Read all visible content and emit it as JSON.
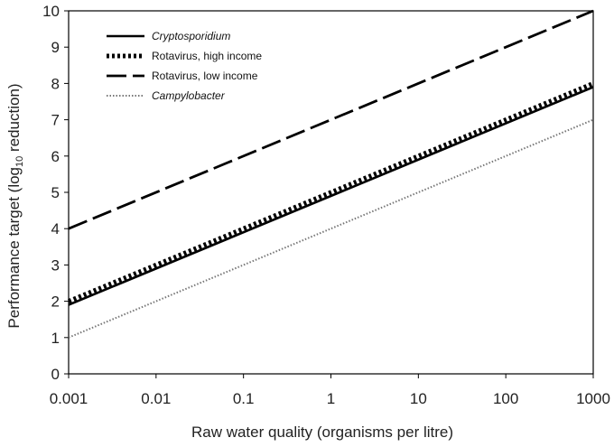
{
  "chart_data": {
    "type": "line",
    "title": "",
    "xlabel": "Raw water quality (organisms per litre)",
    "ylabel_parts": {
      "before": "Performance target (log",
      "sub": "10",
      "after": " reduction)"
    },
    "x_scale": "log",
    "xlim": [
      0.001,
      1000
    ],
    "ylim": [
      0,
      10
    ],
    "x_ticks": [
      "0.001",
      "0.01",
      "0.1",
      "1",
      "10",
      "100",
      "1000"
    ],
    "y_ticks": [
      "0",
      "1",
      "2",
      "3",
      "4",
      "5",
      "6",
      "7",
      "8",
      "9",
      "10"
    ],
    "grid": false,
    "legend_position": "top-left",
    "series": [
      {
        "name": "Cryptosporidium",
        "italic": true,
        "style": "solid",
        "color": "#000000",
        "points": [
          [
            0.001,
            1.9
          ],
          [
            1000,
            7.9
          ]
        ]
      },
      {
        "name": "Rotavirus, high income",
        "italic": false,
        "style": "dotted-thick",
        "color": "#000000",
        "points": [
          [
            0.001,
            2.0
          ],
          [
            1000,
            8.0
          ]
        ]
      },
      {
        "name": "Rotavirus, low income",
        "italic": false,
        "style": "long-dash",
        "color": "#000000",
        "points": [
          [
            0.001,
            4.0
          ],
          [
            1000,
            10.0
          ]
        ]
      },
      {
        "name": "Campylobacter",
        "italic": true,
        "style": "fine-dotted",
        "color": "#777777",
        "points": [
          [
            0.001,
            1.0
          ],
          [
            1000,
            7.0
          ]
        ]
      }
    ]
  }
}
